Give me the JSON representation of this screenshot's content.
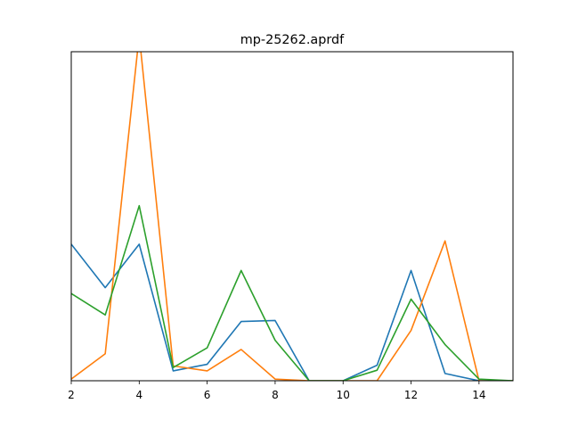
{
  "chart_data": {
    "type": "line",
    "title": "mp-25262.aprdf",
    "xlabel": "",
    "ylabel": "",
    "xlim": [
      2,
      15
    ],
    "ylim": [
      0,
      1.0
    ],
    "x_ticks": [
      2,
      4,
      6,
      8,
      10,
      12,
      14
    ],
    "x_tick_labels": [
      "2",
      "4",
      "6",
      "8",
      "10",
      "12",
      "14"
    ],
    "y_ticks_visible": false,
    "grid": false,
    "legend": "none",
    "x": [
      2,
      3,
      4,
      5,
      6,
      7,
      8,
      9,
      10,
      11,
      12,
      13,
      14,
      15
    ],
    "series": [
      {
        "color": "#1f77b4",
        "values": [
          0.415,
          0.283,
          0.415,
          0.03,
          0.05,
          0.18,
          0.183,
          0.0,
          0.0,
          0.047,
          0.335,
          0.022,
          0.0,
          0.0
        ]
      },
      {
        "color": "#ff7f0e",
        "values": [
          0.005,
          0.082,
          1.05,
          0.045,
          0.03,
          0.095,
          0.005,
          0.0,
          0.0,
          0.0,
          0.153,
          0.425,
          0.0,
          0.0
        ]
      },
      {
        "color": "#2ca02c",
        "values": [
          0.265,
          0.2,
          0.532,
          0.04,
          0.1,
          0.335,
          0.123,
          0.0,
          0.0,
          0.032,
          0.248,
          0.11,
          0.005,
          0.0
        ]
      }
    ]
  }
}
